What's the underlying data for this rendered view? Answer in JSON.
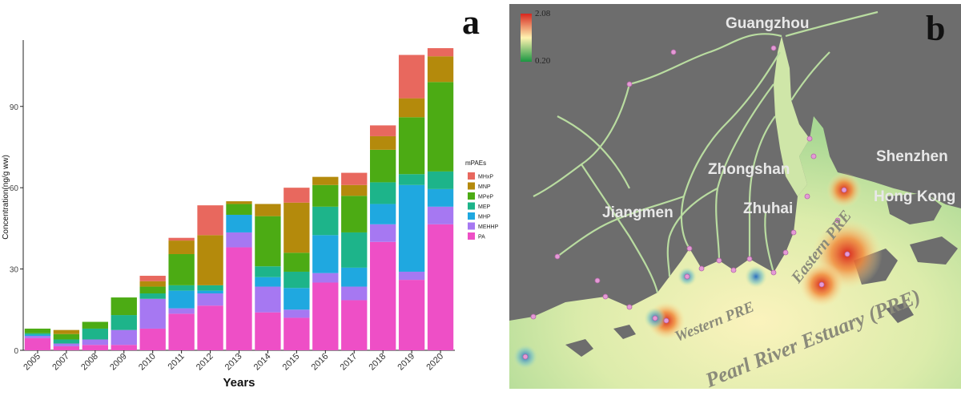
{
  "chart_data": {
    "type": "bar",
    "stacked": true,
    "categories": [
      "2005",
      "2007",
      "2008",
      "2009",
      "2010",
      "2011",
      "2012",
      "2013",
      "2014",
      "2015",
      "2016",
      "2017",
      "2018",
      "2019",
      "2020"
    ],
    "xlabel": "Years",
    "ylabel": "Concentration(ng/g ww)",
    "ylim": [
      0,
      113
    ],
    "yticks": [
      0,
      30,
      60,
      90
    ],
    "legend_title": "mPAEs",
    "legend_position": "right",
    "grid": false,
    "series": [
      {
        "name": "PA",
        "color": "#EE4FC6",
        "values": [
          4.5,
          1.5,
          2,
          2,
          8,
          13.5,
          16.5,
          38,
          14,
          12,
          25,
          18.5,
          40,
          26,
          46.5
        ]
      },
      {
        "name": "MEHHP",
        "color": "#A678F2",
        "values": [
          0.8,
          1,
          2,
          5.5,
          11,
          2,
          4.5,
          5.5,
          9.5,
          3,
          3.5,
          5,
          6.5,
          3,
          6.5
        ]
      },
      {
        "name": "MHP",
        "color": "#1FA8E0",
        "values": [
          0.5,
          0,
          0,
          0,
          0,
          6.5,
          1,
          6.5,
          3.5,
          8,
          14,
          7,
          7.5,
          32,
          6.5
        ]
      },
      {
        "name": "MEP",
        "color": "#1DB48A",
        "values": [
          0.5,
          1.5,
          4,
          5.5,
          2,
          2,
          2,
          0,
          4,
          6,
          10.5,
          13,
          8,
          4,
          6.5
        ]
      },
      {
        "name": "MPeP",
        "color": "#4CAB14",
        "values": [
          1.7,
          2,
          2.5,
          6.5,
          2.5,
          11.5,
          0,
          4,
          18.5,
          7,
          8,
          13.5,
          12,
          21,
          33
        ]
      },
      {
        "name": "MNP",
        "color": "#B48A0C",
        "values": [
          0,
          1.5,
          0,
          0,
          2,
          5,
          18.5,
          1,
          4.5,
          18.5,
          3,
          4,
          5,
          7,
          9.5
        ]
      },
      {
        "name": "MHxP",
        "color": "#E8685E",
        "values": [
          0,
          0,
          0,
          0,
          2,
          1,
          11,
          0,
          0,
          5.5,
          0,
          4.5,
          4,
          16,
          3
        ]
      }
    ]
  },
  "figure": {
    "panel_a_letter": "a",
    "panel_b_letter": "b"
  },
  "map": {
    "scale_max": "2.08",
    "scale_min": "0.20",
    "cities": [
      "Guangzhou",
      "Zhongshan",
      "Shenzhen",
      "Hong Kong",
      "Jiangmen",
      "Zhuhai"
    ],
    "regions": {
      "eastern": "Eastern PRE",
      "western": "Western PRE",
      "estuary": "Pearl River Estuary (PRE)"
    },
    "colors": {
      "land": "#6d6d6d",
      "water": "#cfe6a8",
      "hotspot": "#e8442c",
      "cold": "#3b8ed6",
      "scale_high": "#d7261e",
      "scale_mid": "#fff3b0",
      "scale_low": "#1a9641"
    }
  }
}
